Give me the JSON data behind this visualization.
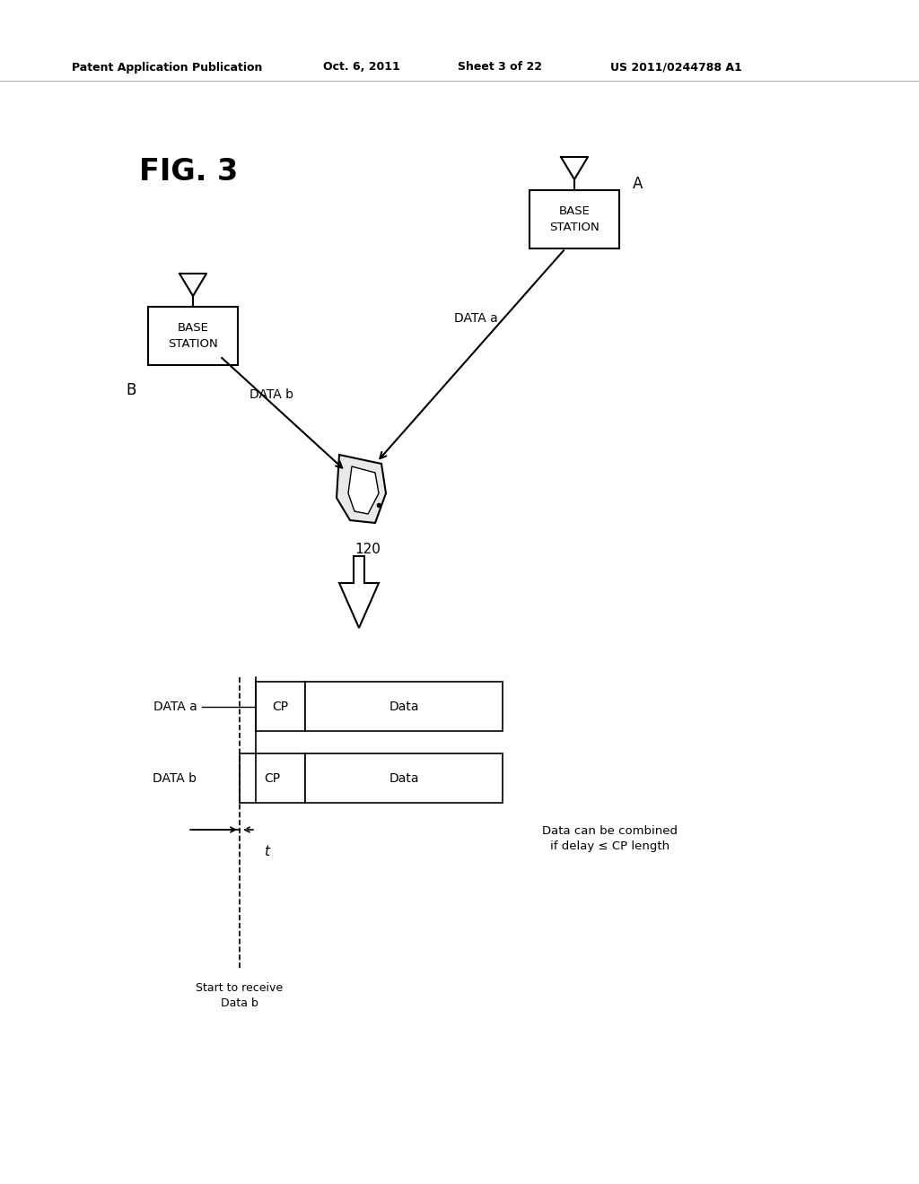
{
  "bg_color": "#ffffff",
  "header_text": "Patent Application Publication",
  "header_date": "Oct. 6, 2011",
  "header_sheet": "Sheet 3 of 22",
  "header_patent": "US 2011/0244788 A1",
  "fig_label": "FIG. 3",
  "base_station_a_label": "A",
  "base_station_b_label": "B",
  "base_station_text": "BASE\nSTATION",
  "mobile_label": "120",
  "data_a_label": "DATA a",
  "data_b_label": "DATA b",
  "cp_label": "CP",
  "data_label": "Data",
  "delay_label": "t",
  "annotation1": "Data can be combined\nif delay ≤ CP length",
  "annotation2": "Start to receive\nData b",
  "line_color": "#000000",
  "text_color": "#000000",
  "font_family": "DejaVu Sans"
}
